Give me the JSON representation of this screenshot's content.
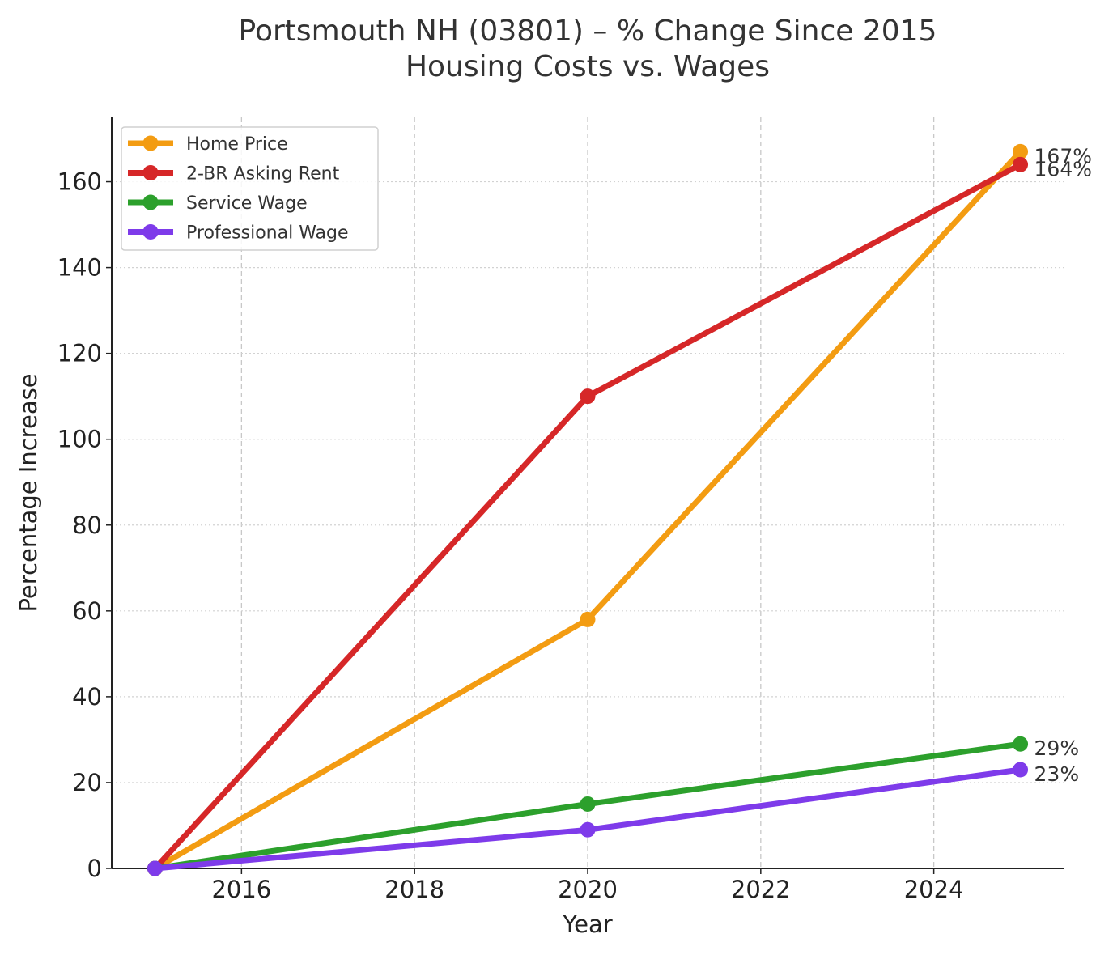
{
  "chart_data": {
    "type": "line",
    "title": "Portsmouth NH (03801) – % Change Since 2015",
    "subtitle": "Housing Costs vs. Wages",
    "xlabel": "Year",
    "ylabel": "Percentage Increase",
    "x": [
      2015,
      2020,
      2025
    ],
    "xlim": [
      2014.5,
      2025.5
    ],
    "ylim": [
      0,
      175
    ],
    "xticks": [
      2016,
      2018,
      2020,
      2022,
      2024
    ],
    "yticks": [
      0,
      20,
      40,
      60,
      80,
      100,
      120,
      140,
      160
    ],
    "grid": true,
    "legend_position": "top-left",
    "series": [
      {
        "name": "Home Price",
        "values": [
          0,
          58,
          167
        ],
        "color": "#f39c12",
        "end_label": "167%"
      },
      {
        "name": "2-BR Asking Rent",
        "values": [
          0,
          110,
          164
        ],
        "color": "#d62728",
        "end_label": "164%"
      },
      {
        "name": "Service Wage",
        "values": [
          0,
          15,
          29
        ],
        "color": "#2ca02c",
        "end_label": "29%"
      },
      {
        "name": "Professional Wage",
        "values": [
          0,
          9,
          23
        ],
        "color": "#7e3bea",
        "end_label": "23%"
      }
    ]
  }
}
